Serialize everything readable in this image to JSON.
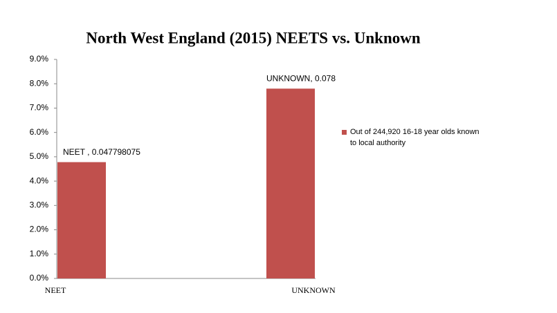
{
  "chart_data": {
    "type": "bar",
    "title": "North West England (2015) NEETS vs. Unknown",
    "categories": [
      "NEET",
      "UNKNOWN"
    ],
    "series": [
      {
        "name": "Out of 244,920 16-18 year olds known to local authority",
        "color": "#c0504d",
        "values": [
          4.7798075,
          7.8
        ],
        "value_labels": [
          "NEET , 0.047798075",
          "UNKNOWN, 0.078"
        ]
      }
    ],
    "ylim": [
      0,
      9
    ],
    "yticks": [
      {
        "value": 0,
        "label": "0.0%"
      },
      {
        "value": 1,
        "label": "1.0%"
      },
      {
        "value": 2,
        "label": "2.0%"
      },
      {
        "value": 3,
        "label": "3.0%"
      },
      {
        "value": 4,
        "label": "4.0%"
      },
      {
        "value": 5,
        "label": "5.0%"
      },
      {
        "value": 6,
        "label": "6.0%"
      },
      {
        "value": 7,
        "label": "7.0%"
      },
      {
        "value": 8,
        "label": "8.0%"
      },
      {
        "value": 9,
        "label": "9.0%"
      }
    ],
    "grid": false,
    "legend": "right"
  }
}
